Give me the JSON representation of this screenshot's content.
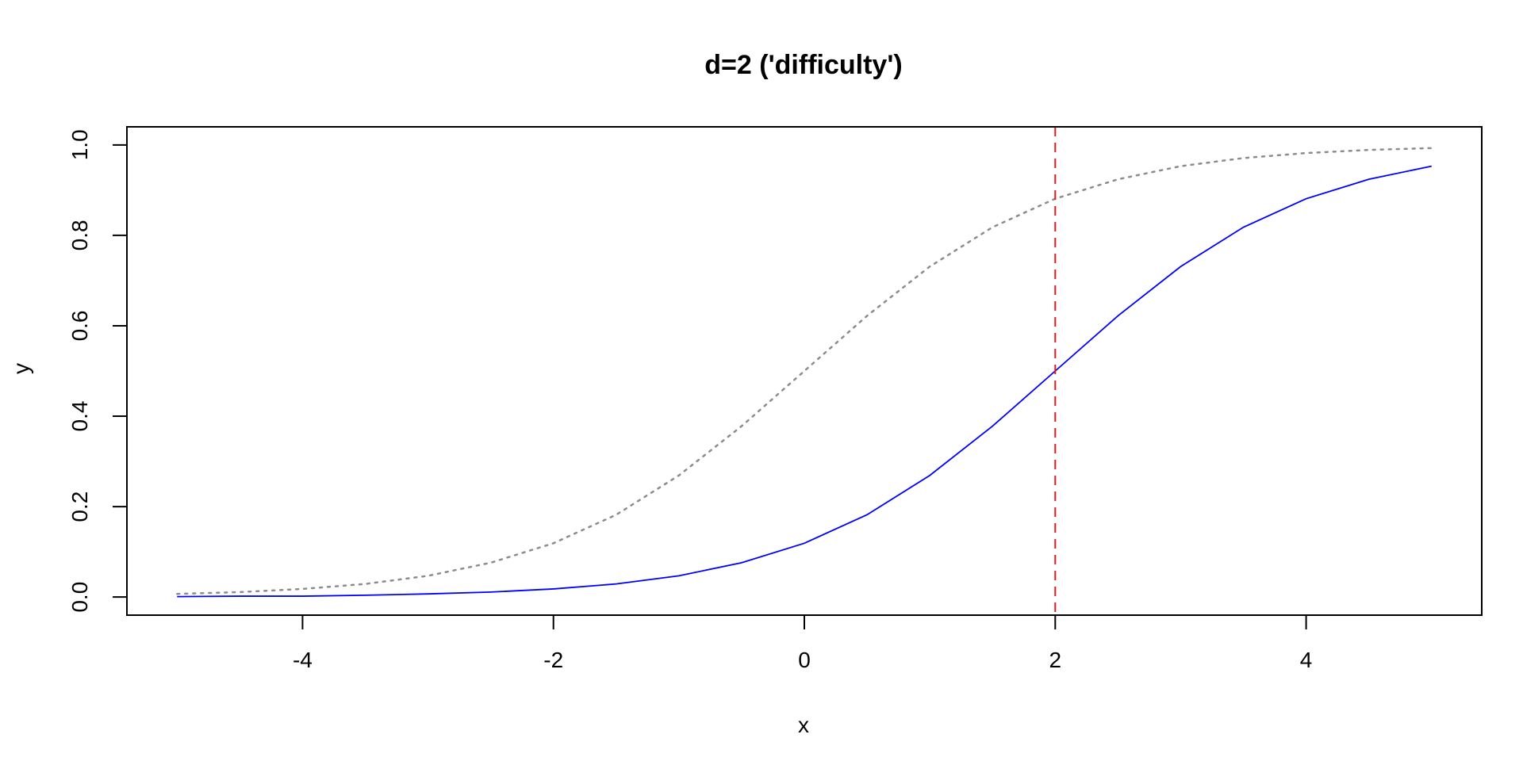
{
  "chart_data": {
    "type": "line",
    "title": "d=2 ('difficulty')",
    "xlabel": "x",
    "ylabel": "y",
    "xlim": [
      -5.4,
      5.4
    ],
    "ylim": [
      -0.04,
      1.04
    ],
    "x_ticks": [
      -4,
      -2,
      0,
      2,
      4
    ],
    "x_tick_labels": [
      "-4",
      "-2",
      "0",
      "2",
      "4"
    ],
    "y_ticks": [
      0.0,
      0.2,
      0.4,
      0.6,
      0.8,
      1.0
    ],
    "y_tick_labels": [
      "0.0",
      "0.2",
      "0.4",
      "0.6",
      "0.8",
      "1.0"
    ],
    "grid": false,
    "series": [
      {
        "style": "dotted",
        "color": "#8c8c8c",
        "x": [
          -5,
          -4.5,
          -4,
          -3.5,
          -3,
          -2.5,
          -2,
          -1.5,
          -1,
          -0.5,
          0,
          0.5,
          1,
          1.5,
          2,
          2.5,
          3,
          3.5,
          4,
          4.5,
          5
        ],
        "y": [
          0.007,
          0.011,
          0.018,
          0.029,
          0.047,
          0.076,
          0.119,
          0.182,
          0.269,
          0.378,
          0.5,
          0.622,
          0.731,
          0.818,
          0.881,
          0.924,
          0.953,
          0.971,
          0.982,
          0.989,
          0.993
        ]
      },
      {
        "style": "solid",
        "color": "#0000ff",
        "x": [
          -5,
          -4.5,
          -4,
          -3.5,
          -3,
          -2.5,
          -2,
          -1.5,
          -1,
          -0.5,
          0,
          0.5,
          1,
          1.5,
          2,
          2.5,
          3,
          3.5,
          4,
          4.5,
          5
        ],
        "y": [
          0.001,
          0.002,
          0.002,
          0.004,
          0.007,
          0.011,
          0.018,
          0.029,
          0.047,
          0.076,
          0.119,
          0.182,
          0.269,
          0.378,
          0.5,
          0.622,
          0.731,
          0.818,
          0.881,
          0.924,
          0.953
        ]
      }
    ],
    "annotations": [
      {
        "type": "vline",
        "x": 2,
        "style": "dashed",
        "color": "#e31a1c"
      }
    ]
  }
}
